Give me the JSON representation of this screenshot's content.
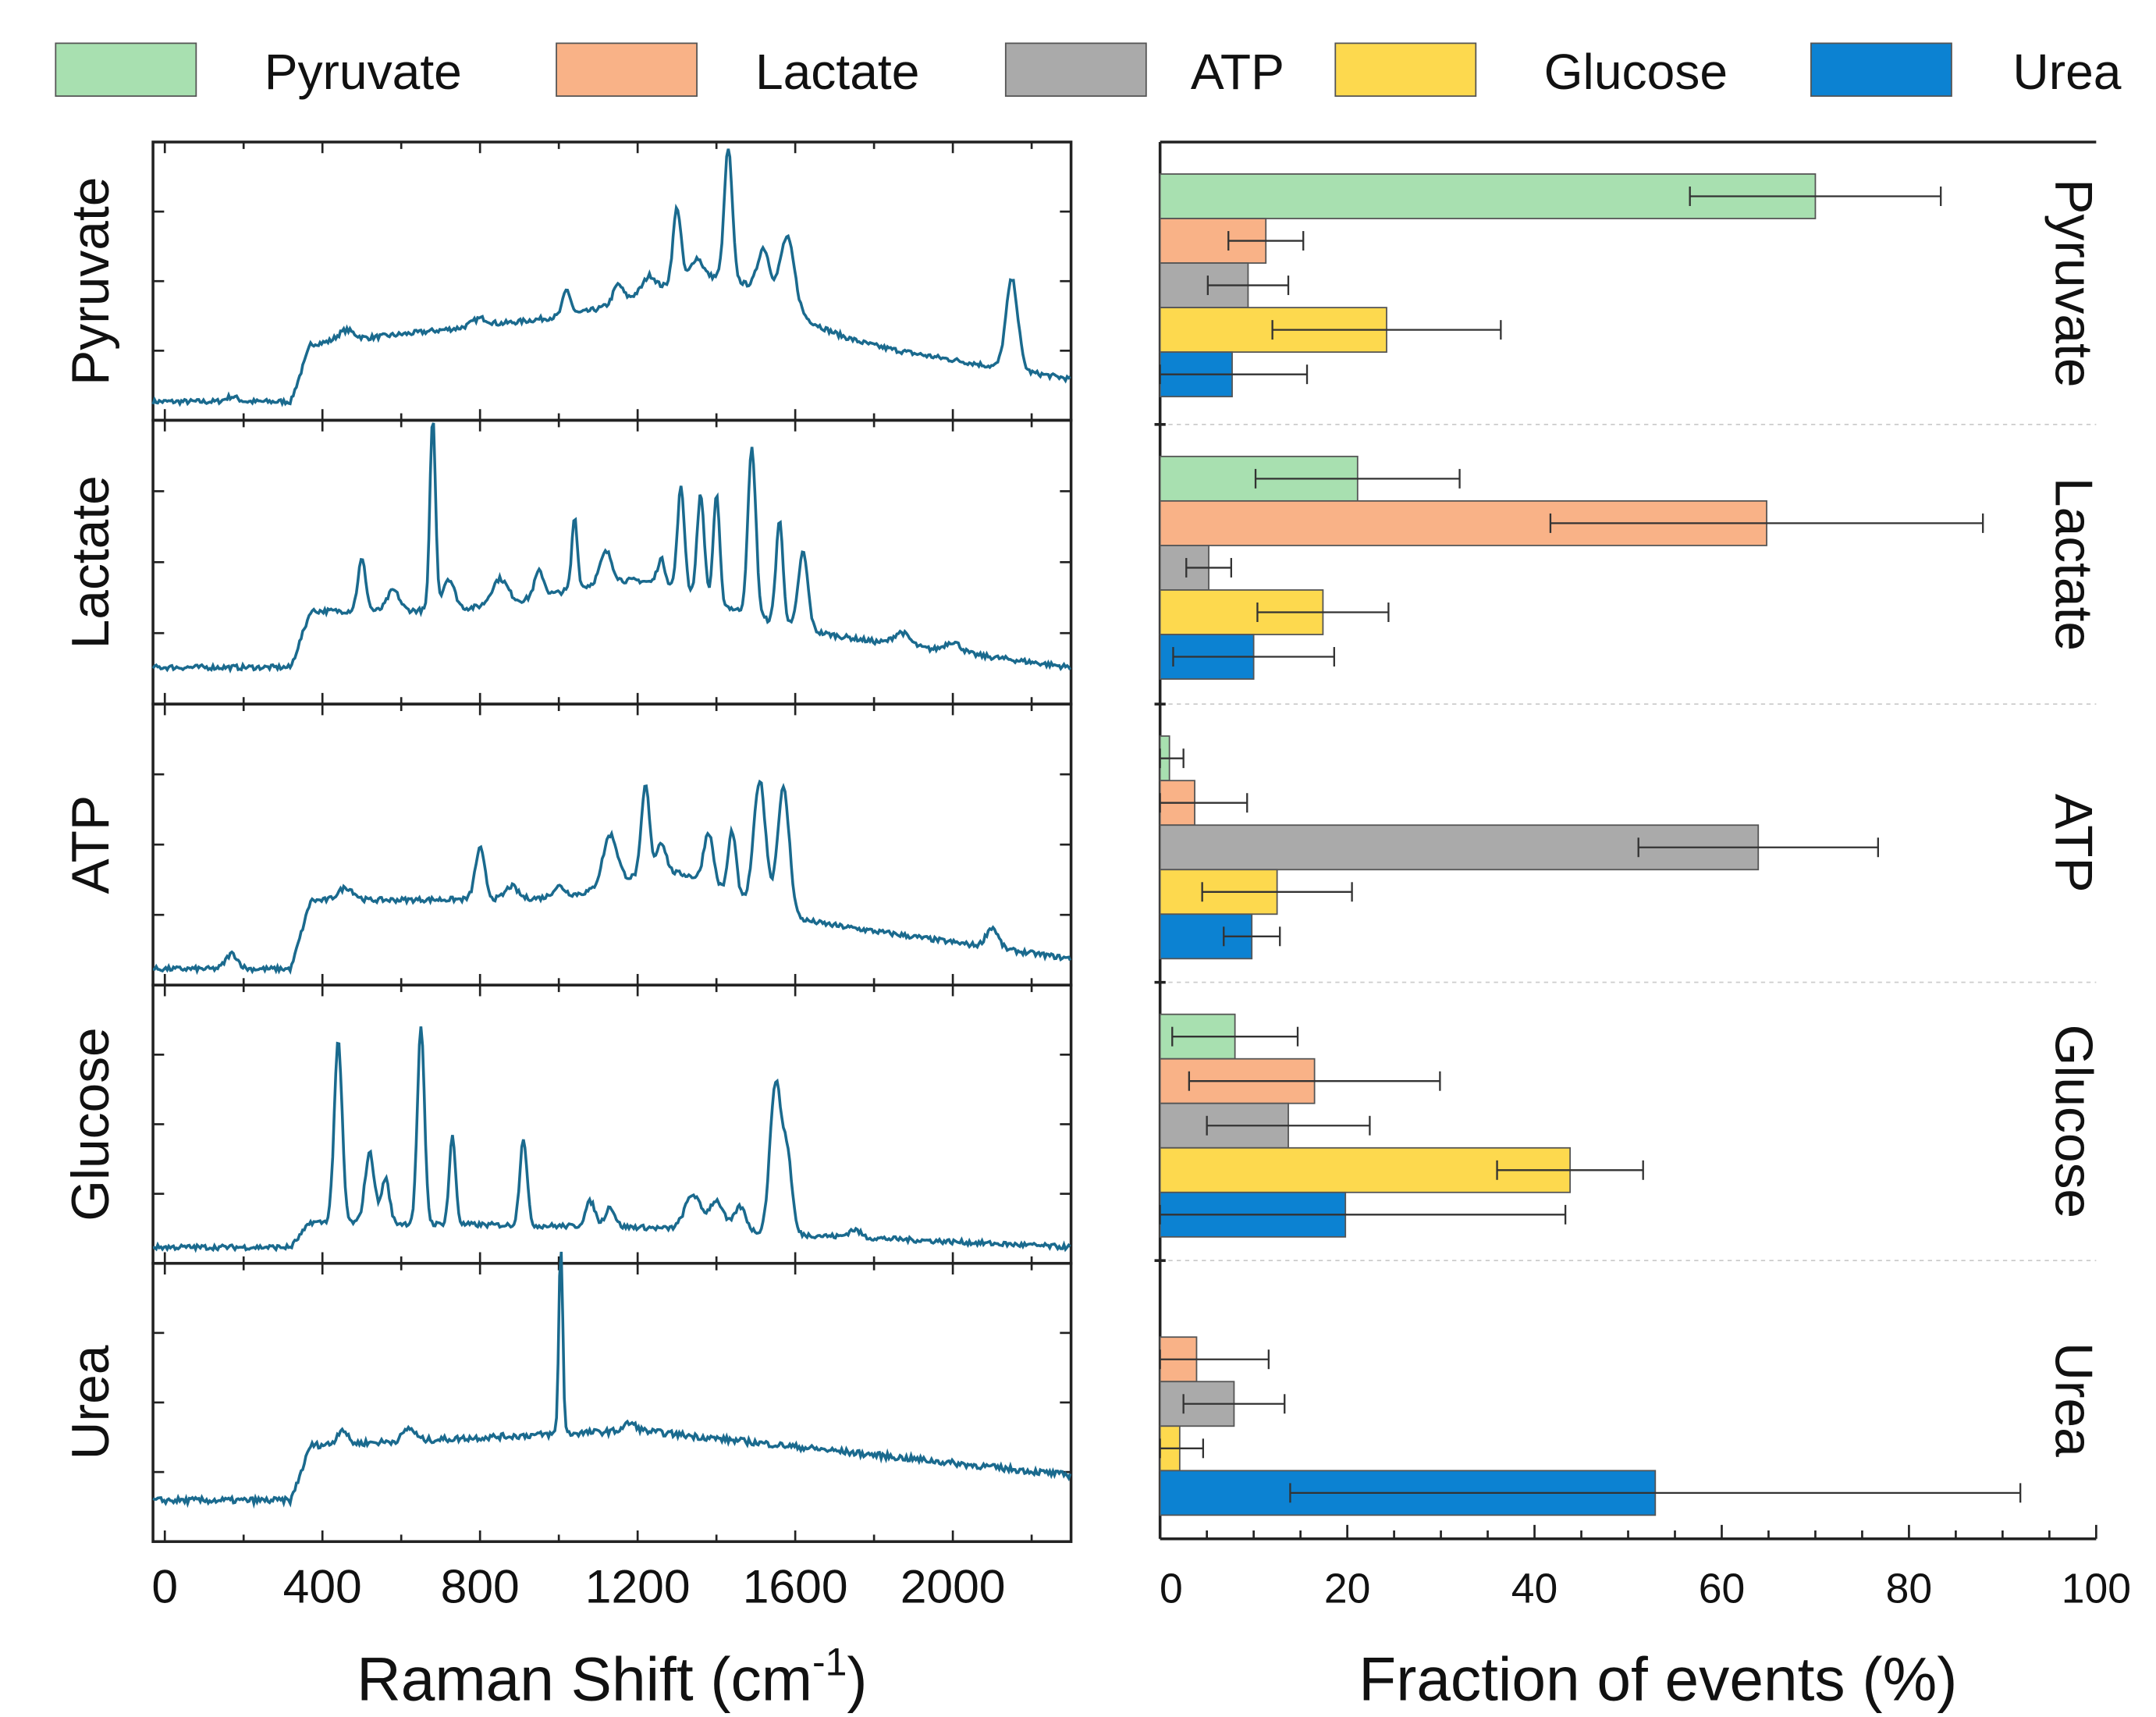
{
  "chart_data": [
    {
      "type": "line",
      "title": "",
      "xlabel": "Raman Shift (cm",
      "xlabel_sup": "-1",
      "xlabel_end": ")",
      "ylabel": "",
      "xlim": [
        -30,
        2300
      ],
      "xticks": [
        0,
        400,
        800,
        1200,
        1600,
        2000
      ],
      "xtick_labels": [
        "0",
        "400",
        "800",
        "1200",
        "1600",
        "2000"
      ],
      "line_color": "#1a6a8e",
      "note": "stacked Raman spectra, normalized intensity per panel",
      "series": [
        {
          "name": "Pyruvate",
          "base": [
            0.03,
            0.26,
            0.4,
            0.12
          ],
          "peaks": [
            [
              170,
              0.02,
              15
            ],
            [
              460,
              0.04,
              20
            ],
            [
              800,
              0.03,
              20
            ],
            [
              1020,
              0.1,
              10
            ],
            [
              1150,
              0.07,
              12
            ],
            [
              1230,
              0.06,
              15
            ],
            [
              1300,
              0.3,
              10
            ],
            [
              1350,
              0.08,
              15
            ],
            [
              1430,
              0.52,
              10
            ],
            [
              1520,
              0.18,
              15
            ],
            [
              1580,
              0.28,
              18
            ],
            [
              1420,
              0.18,
              150
            ],
            [
              2150,
              0.36,
              15
            ]
          ]
        },
        {
          "name": "Lactate",
          "base": [
            0.1,
            0.32,
            0.32,
            0.1
          ],
          "peaks": [
            [
              500,
              0.2,
              10
            ],
            [
              580,
              0.08,
              15
            ],
            [
              680,
              0.75,
              7
            ],
            [
              720,
              0.12,
              15
            ],
            [
              850,
              0.1,
              20
            ],
            [
              950,
              0.1,
              12
            ],
            [
              1040,
              0.28,
              7
            ],
            [
              1120,
              0.12,
              15
            ],
            [
              1260,
              0.1,
              10
            ],
            [
              1310,
              0.4,
              9
            ],
            [
              1360,
              0.4,
              9
            ],
            [
              1400,
              0.42,
              8
            ],
            [
              1490,
              0.65,
              10
            ],
            [
              1560,
              0.4,
              9
            ],
            [
              1620,
              0.3,
              12
            ],
            [
              1200,
              0.12,
              200
            ],
            [
              1870,
              0.05,
              20
            ],
            [
              2000,
              0.04,
              20
            ]
          ]
        },
        {
          "name": "ATP",
          "base": [
            0.02,
            0.29,
            0.3,
            0.06
          ],
          "peaks": [
            [
              170,
              0.06,
              15
            ],
            [
              460,
              0.05,
              20
            ],
            [
              800,
              0.2,
              12
            ],
            [
              880,
              0.05,
              15
            ],
            [
              1000,
              0.04,
              15
            ],
            [
              1130,
              0.2,
              18
            ],
            [
              1220,
              0.35,
              10
            ],
            [
              1260,
              0.12,
              12
            ],
            [
              1380,
              0.2,
              12
            ],
            [
              1440,
              0.25,
              10
            ],
            [
              1510,
              0.5,
              15
            ],
            [
              1570,
              0.5,
              15
            ],
            [
              1300,
              0.12,
              130
            ],
            [
              2100,
              0.08,
              15
            ]
          ]
        },
        {
          "name": "Glucose",
          "base": [
            0.02,
            0.12,
            0.1,
            0.02
          ],
          "peaks": [
            [
              440,
              0.72,
              10
            ],
            [
              520,
              0.28,
              12
            ],
            [
              560,
              0.18,
              10
            ],
            [
              650,
              0.78,
              9
            ],
            [
              730,
              0.35,
              8
            ],
            [
              910,
              0.35,
              9
            ],
            [
              1080,
              0.1,
              12
            ],
            [
              1130,
              0.08,
              12
            ],
            [
              1340,
              0.14,
              20
            ],
            [
              1400,
              0.12,
              18
            ],
            [
              1460,
              0.1,
              15
            ],
            [
              1550,
              0.6,
              14
            ],
            [
              1580,
              0.3,
              12
            ],
            [
              1750,
              0.03,
              15
            ]
          ]
        },
        {
          "name": "Urea",
          "base": [
            0.12,
            0.34,
            0.4,
            0.22
          ],
          "peaks": [
            [
              450,
              0.06,
              12
            ],
            [
              620,
              0.05,
              15
            ],
            [
              1005,
              0.75,
              5
            ],
            [
              1180,
              0.03,
              15
            ]
          ]
        }
      ]
    },
    {
      "type": "bar",
      "orientation": "horizontal",
      "xlabel": "Fraction of events (%)",
      "xlim": [
        0,
        100
      ],
      "xticks": [
        0,
        20,
        40,
        60,
        80,
        100
      ],
      "xtick_labels": [
        "0",
        "20",
        "40",
        "60",
        "80",
        "100"
      ],
      "legend": {
        "placement": "top",
        "entries": [
          "Pyruvate",
          "Lactate",
          "ATP",
          "Glucose",
          "Urea"
        ]
      },
      "series_colors": [
        "#a8e0b0",
        "#f9b287",
        "#aaaaaa",
        "#fdd94e",
        "#0c82d2"
      ],
      "categories": [
        "Pyruvate",
        "Lactate",
        "ATP",
        "Glucose",
        "Urea"
      ],
      "series": [
        {
          "name": "Pyruvate",
          "values": [
            70.0,
            21.1,
            1.0,
            8.0,
            0
          ],
          "errors": [
            13.4,
            10.9,
            1.5,
            6.7,
            0
          ]
        },
        {
          "name": "Lactate",
          "values": [
            11.3,
            64.8,
            3.7,
            16.5,
            3.9
          ],
          "errors": [
            4.0,
            23.1,
            5.6,
            13.4,
            7.7
          ]
        },
        {
          "name": "ATP",
          "values": [
            9.4,
            5.2,
            63.9,
            13.7,
            7.9
          ],
          "errors": [
            4.3,
            2.4,
            12.8,
            8.7,
            5.4
          ]
        },
        {
          "name": "Glucose",
          "values": [
            24.2,
            17.4,
            12.5,
            43.8,
            2.1
          ],
          "errors": [
            12.2,
            7.0,
            8.0,
            7.8,
            2.5
          ]
        },
        {
          "name": "Urea",
          "values": [
            7.7,
            10.0,
            9.8,
            19.8,
            52.9
          ],
          "errors": [
            8.0,
            8.6,
            3.0,
            23.5,
            39.0
          ]
        }
      ]
    }
  ]
}
